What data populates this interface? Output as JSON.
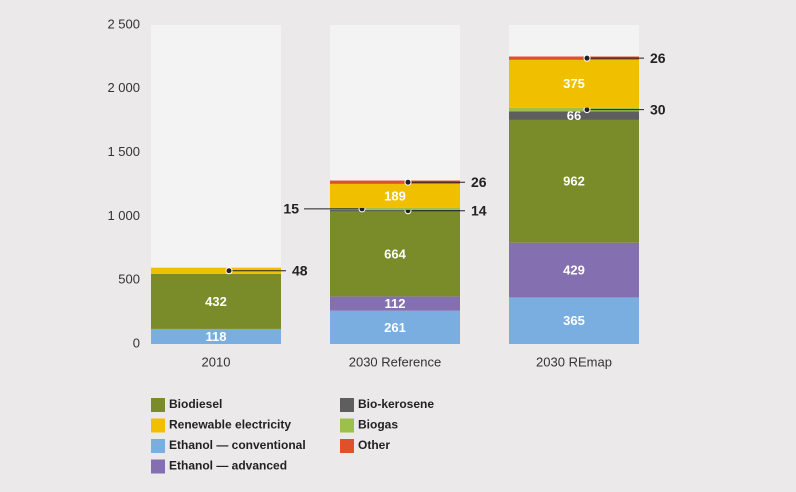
{
  "chart_data": {
    "type": "stacked-bar",
    "categories": [
      "2010",
      "2030 Reference",
      "2030 REmap"
    ],
    "series": [
      {
        "name": "Ethanol — conventional",
        "color": "#7aade0",
        "values": [
          118,
          261,
          365
        ]
      },
      {
        "name": "Ethanol — advanced",
        "color": "#8470b0",
        "values": [
          null,
          112,
          429
        ]
      },
      {
        "name": "Biodiesel",
        "color": "#7a8c2a",
        "values": [
          432,
          664,
          962
        ]
      },
      {
        "name": "Bio-kerosene",
        "color": "#5e5e5e",
        "values": [
          null,
          14,
          66
        ]
      },
      {
        "name": "Biogas",
        "color": "#9cc04a",
        "values": [
          null,
          15,
          30
        ]
      },
      {
        "name": "Renewable electricity",
        "color": "#f0c000",
        "values": [
          48,
          189,
          375
        ]
      },
      {
        "name": "Other",
        "color": "#e0502a",
        "values": [
          null,
          26,
          26
        ]
      }
    ],
    "ylim": [
      0,
      2500
    ],
    "yticks": [
      0,
      500,
      {
        "value": 1000,
        "label": "1 000"
      },
      {
        "value": 1500,
        "label": "1 500"
      },
      {
        "value": 2000,
        "label": "2 000"
      },
      {
        "value": 2500,
        "label": "2 500"
      }
    ]
  }
}
